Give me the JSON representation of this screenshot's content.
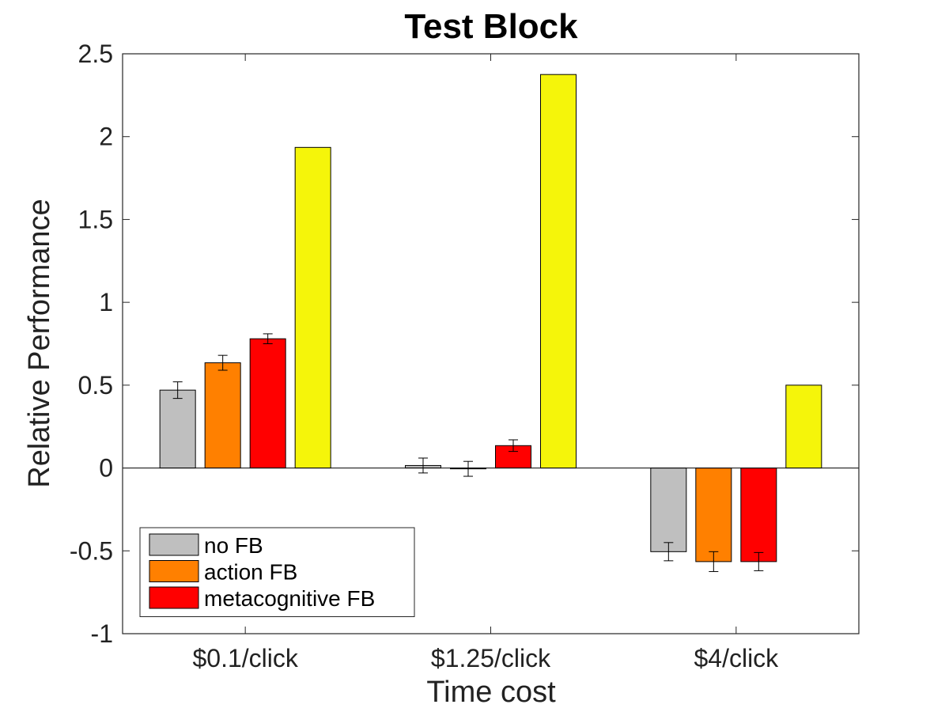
{
  "chart_data": {
    "type": "bar",
    "title": "Test Block",
    "xlabel": "Time cost",
    "ylabel": "Relative Performance",
    "categories": [
      "$0.1/click",
      "$1.25/click",
      "$4/click"
    ],
    "ylim": [
      -1,
      2.5
    ],
    "yticks": [
      -1,
      -0.5,
      0,
      0.5,
      1,
      1.5,
      2,
      2.5
    ],
    "ytick_labels": [
      "-1",
      "-0.5",
      "0",
      "0.5",
      "1",
      "1.5",
      "2",
      "2.5"
    ],
    "grid": false,
    "legend_position": "bottom-left",
    "series": [
      {
        "name": "no FB",
        "color": "#bfbfbf",
        "values": [
          0.47,
          0.015,
          -0.505
        ],
        "errors": [
          0.05,
          0.045,
          0.055
        ]
      },
      {
        "name": "action FB",
        "color": "#ff8000",
        "values": [
          0.635,
          -0.005,
          -0.565
        ],
        "errors": [
          0.045,
          0.045,
          0.06
        ]
      },
      {
        "name": "metacognitive FB",
        "color": "#ff0000",
        "values": [
          0.78,
          0.135,
          -0.565
        ],
        "errors": [
          0.03,
          0.035,
          0.055
        ]
      },
      {
        "color": "#f5f50a",
        "values": [
          1.935,
          2.375,
          0.5
        ],
        "errors": null
      }
    ]
  }
}
